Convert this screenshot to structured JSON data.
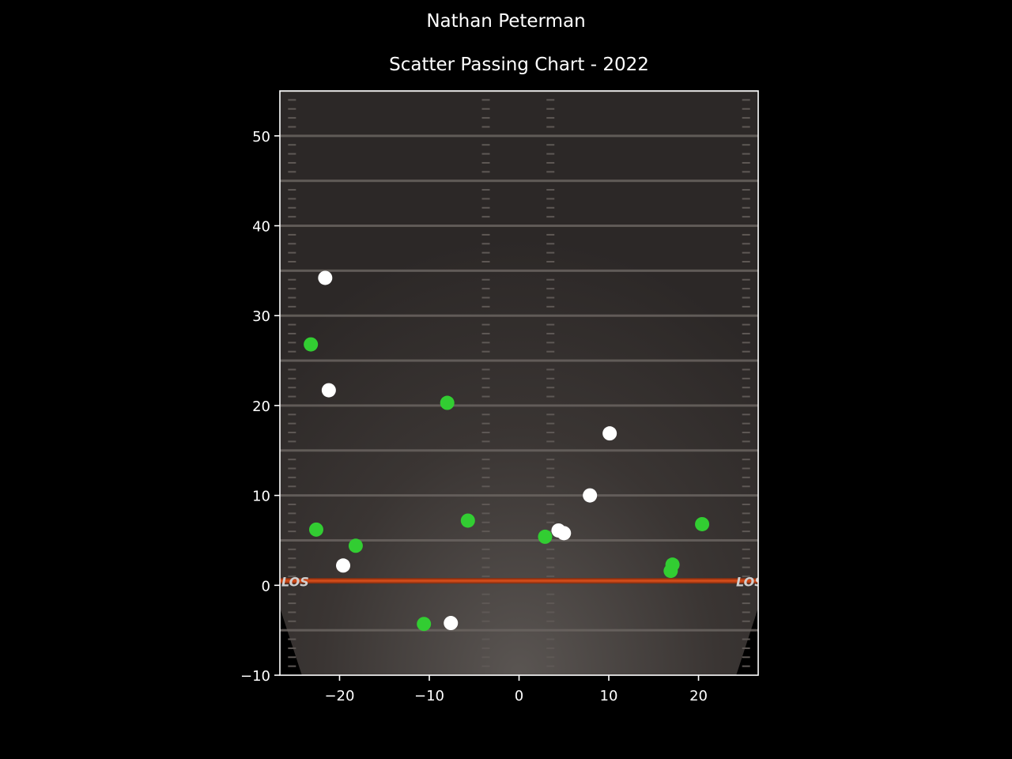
{
  "chart_data": {
    "type": "scatter",
    "suptitle": "Nathan Peterman",
    "title": "Scatter Passing Chart - 2022",
    "xlabel": "",
    "ylabel": "",
    "xlim": [
      -26.65,
      26.65
    ],
    "ylim": [
      -10,
      55
    ],
    "xticks": [
      -20,
      -10,
      0,
      10,
      20
    ],
    "xtick_labels": [
      "−20",
      "−10",
      "0",
      "10",
      "20"
    ],
    "yticks": [
      -10,
      0,
      10,
      20,
      30,
      40,
      50
    ],
    "ytick_labels": [
      "−10",
      "0",
      "10",
      "20",
      "30",
      "40",
      "50"
    ],
    "background": "football field",
    "grid": false,
    "series": [
      {
        "color": "#32cd32",
        "points": [
          {
            "x": -23.2,
            "y": 26.8
          },
          {
            "x": -22.6,
            "y": 6.2
          },
          {
            "x": -18.2,
            "y": 4.4
          },
          {
            "x": -8.0,
            "y": 20.3
          },
          {
            "x": -5.7,
            "y": 7.2
          },
          {
            "x": -10.6,
            "y": -4.3
          },
          {
            "x": 2.9,
            "y": 5.4
          },
          {
            "x": 17.1,
            "y": 2.3
          },
          {
            "x": 16.9,
            "y": 1.6
          },
          {
            "x": 20.4,
            "y": 6.8
          }
        ]
      },
      {
        "color": "#ffffff",
        "points": [
          {
            "x": -21.6,
            "y": 34.2
          },
          {
            "x": -21.2,
            "y": 21.7
          },
          {
            "x": -19.6,
            "y": 2.2
          },
          {
            "x": -7.6,
            "y": -4.2
          },
          {
            "x": 4.4,
            "y": 6.1
          },
          {
            "x": 5.0,
            "y": 5.8
          },
          {
            "x": 7.9,
            "y": 10.0
          },
          {
            "x": 10.1,
            "y": 16.9
          }
        ]
      }
    ]
  }
}
